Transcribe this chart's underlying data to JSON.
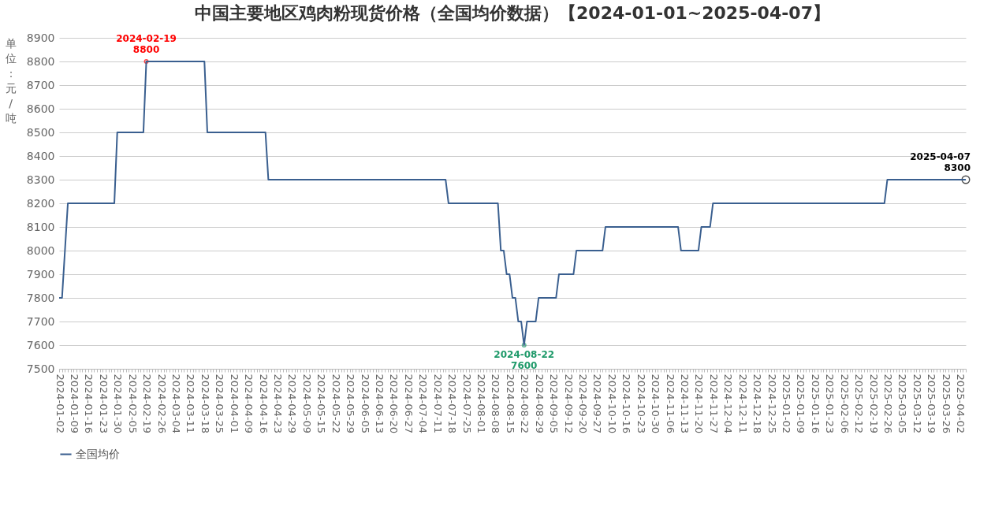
{
  "chart_data": {
    "type": "line",
    "title": "中国主要地区鸡肉粉现货价格（全国均价数据）【2024-01-01~2025-04-07】",
    "ylabel": "单位：元/吨",
    "categories": [
      "2024-01-02",
      null,
      null,
      null,
      null,
      "2024-01-09",
      null,
      null,
      null,
      null,
      "2024-01-16",
      null,
      null,
      null,
      null,
      "2024-01-23",
      null,
      null,
      null,
      null,
      "2024-01-30",
      null,
      null,
      null,
      null,
      "2024-02-05",
      null,
      null,
      null,
      null,
      "2024-02-19",
      null,
      null,
      null,
      null,
      "2024-02-26",
      null,
      null,
      null,
      null,
      "2024-03-04",
      null,
      null,
      null,
      null,
      "2024-03-11",
      null,
      null,
      null,
      null,
      "2024-03-18",
      null,
      null,
      null,
      null,
      "2024-03-25",
      null,
      null,
      null,
      null,
      "2024-04-01",
      null,
      null,
      null,
      null,
      "2024-04-09",
      null,
      null,
      null,
      null,
      "2024-04-16",
      null,
      null,
      null,
      null,
      "2024-04-23",
      null,
      null,
      null,
      null,
      "2024-04-29",
      null,
      null,
      null,
      null,
      "2024-05-09",
      null,
      null,
      null,
      null,
      "2024-05-15",
      null,
      null,
      null,
      null,
      "2024-05-22",
      null,
      null,
      null,
      null,
      "2024-05-29",
      null,
      null,
      null,
      null,
      "2024-06-05",
      null,
      null,
      null,
      null,
      "2024-06-13",
      null,
      null,
      null,
      null,
      "2024-06-20",
      null,
      null,
      null,
      null,
      "2024-06-27",
      null,
      null,
      null,
      null,
      "2024-07-04",
      null,
      null,
      null,
      null,
      "2024-07-11",
      null,
      null,
      null,
      null,
      "2024-07-18",
      null,
      null,
      null,
      null,
      "2024-07-25",
      null,
      null,
      null,
      null,
      "2024-08-01",
      null,
      null,
      null,
      null,
      "2024-08-08",
      null,
      null,
      null,
      null,
      "2024-08-15",
      null,
      null,
      null,
      null,
      "2024-08-22",
      null,
      null,
      null,
      null,
      "2024-08-29",
      null,
      null,
      null,
      null,
      "2024-09-05",
      null,
      null,
      null,
      null,
      "2024-09-12",
      null,
      null,
      null,
      null,
      "2024-09-20",
      null,
      null,
      null,
      null,
      "2024-09-27",
      null,
      null,
      null,
      null,
      "2024-10-10",
      null,
      null,
      null,
      null,
      "2024-10-16",
      null,
      null,
      null,
      null,
      "2024-10-23",
      null,
      null,
      null,
      null,
      "2024-10-30",
      null,
      null,
      null,
      null,
      "2024-11-06",
      null,
      null,
      null,
      null,
      "2024-11-13",
      null,
      null,
      null,
      null,
      "2024-11-20",
      null,
      null,
      null,
      null,
      "2024-11-27",
      null,
      null,
      null,
      null,
      "2024-12-04",
      null,
      null,
      null,
      null,
      "2024-12-11",
      null,
      null,
      null,
      null,
      "2024-12-18",
      null,
      null,
      null,
      null,
      "2024-12-25",
      null,
      null,
      null,
      null,
      "2025-01-02",
      null,
      null,
      null,
      null,
      "2025-01-09",
      null,
      null,
      null,
      null,
      "2025-01-16",
      null,
      null,
      null,
      null,
      "2025-01-23",
      null,
      null,
      null,
      null,
      "2025-02-06",
      null,
      null,
      null,
      null,
      "2025-02-12",
      null,
      null,
      null,
      null,
      "2025-02-19",
      null,
      null,
      null,
      null,
      "2025-02-26",
      null,
      null,
      null,
      null,
      "2025-03-05",
      null,
      null,
      null,
      null,
      "2025-03-12",
      null,
      null,
      null,
      null,
      "2025-03-19",
      null,
      null,
      null,
      null,
      "2025-03-26",
      null,
      null,
      null,
      null,
      "2025-04-02",
      null,
      null
    ],
    "series": [
      {
        "name": "全国均价",
        "color": "#3a5f8f",
        "values": [
          7800,
          7800,
          8000,
          8200,
          8200,
          8200,
          8200,
          8200,
          8200,
          8200,
          8200,
          8200,
          8200,
          8200,
          8200,
          8200,
          8200,
          8200,
          8200,
          8200,
          8500,
          8500,
          8500,
          8500,
          8500,
          8500,
          8500,
          8500,
          8500,
          8500,
          8800,
          8800,
          8800,
          8800,
          8800,
          8800,
          8800,
          8800,
          8800,
          8800,
          8800,
          8800,
          8800,
          8800,
          8800,
          8800,
          8800,
          8800,
          8800,
          8800,
          8800,
          8500,
          8500,
          8500,
          8500,
          8500,
          8500,
          8500,
          8500,
          8500,
          8500,
          8500,
          8500,
          8500,
          8500,
          8500,
          8500,
          8500,
          8500,
          8500,
          8500,
          8500,
          8300,
          8300,
          8300,
          8300,
          8300,
          8300,
          8300,
          8300,
          8300,
          8300,
          8300,
          8300,
          8300,
          8300,
          8300,
          8300,
          8300,
          8300,
          8300,
          8300,
          8300,
          8300,
          8300,
          8300,
          8300,
          8300,
          8300,
          8300,
          8300,
          8300,
          8300,
          8300,
          8300,
          8300,
          8300,
          8300,
          8300,
          8300,
          8300,
          8300,
          8300,
          8300,
          8300,
          8300,
          8300,
          8300,
          8300,
          8300,
          8300,
          8300,
          8300,
          8300,
          8300,
          8300,
          8300,
          8300,
          8300,
          8300,
          8300,
          8300,
          8300,
          8300,
          8200,
          8200,
          8200,
          8200,
          8200,
          8200,
          8200,
          8200,
          8200,
          8200,
          8200,
          8200,
          8200,
          8200,
          8200,
          8200,
          8200,
          8200,
          8000,
          8000,
          7900,
          7900,
          7800,
          7800,
          7700,
          7700,
          7600,
          7700,
          7700,
          7700,
          7700,
          7800,
          7800,
          7800,
          7800,
          7800,
          7800,
          7800,
          7900,
          7900,
          7900,
          7900,
          7900,
          7900,
          8000,
          8000,
          8000,
          8000,
          8000,
          8000,
          8000,
          8000,
          8000,
          8000,
          8100,
          8100,
          8100,
          8100,
          8100,
          8100,
          8100,
          8100,
          8100,
          8100,
          8100,
          8100,
          8100,
          8100,
          8100,
          8100,
          8100,
          8100,
          8100,
          8100,
          8100,
          8100,
          8100,
          8100,
          8100,
          8100,
          8000,
          8000,
          8000,
          8000,
          8000,
          8000,
          8000,
          8100,
          8100,
          8100,
          8100,
          8200,
          8200,
          8200,
          8200,
          8200,
          8200,
          8200,
          8200,
          8200,
          8200,
          8200,
          8200,
          8200,
          8200,
          8200,
          8200,
          8200,
          8200,
          8200,
          8200,
          8200,
          8200,
          8200,
          8200,
          8200,
          8200,
          8200,
          8200,
          8200,
          8200,
          8200,
          8200,
          8200,
          8200,
          8200,
          8200,
          8200,
          8200,
          8200,
          8200,
          8200,
          8200,
          8200,
          8200,
          8200,
          8200,
          8200,
          8200,
          8200,
          8200,
          8200,
          8200,
          8200,
          8200,
          8200,
          8200,
          8200,
          8200,
          8200,
          8200,
          8300,
          8300,
          8300,
          8300,
          8300,
          8300,
          8300,
          8300,
          8300,
          8300,
          8300,
          8300,
          8300,
          8300,
          8300,
          8300,
          8300,
          8300,
          8300,
          8300,
          8300,
          8300,
          8300,
          8300,
          8300,
          8300,
          8300,
          8300
        ]
      }
    ],
    "ylim": [
      7500,
      8900
    ],
    "yticks": [
      7500,
      7600,
      7700,
      7800,
      7900,
      8000,
      8100,
      8200,
      8300,
      8400,
      8500,
      8600,
      8700,
      8800,
      8900
    ],
    "grid": "y",
    "legend": "bottom",
    "annotations": [
      {
        "text": "2024-02-19\n8800",
        "x": "2024-02-19",
        "y": 8800
      },
      {
        "text": "2024-08-22\n7600",
        "x": "2024-08-22",
        "y": 7600
      },
      {
        "text": "2025-04-07\n8300",
        "y": 8300
      }
    ]
  }
}
